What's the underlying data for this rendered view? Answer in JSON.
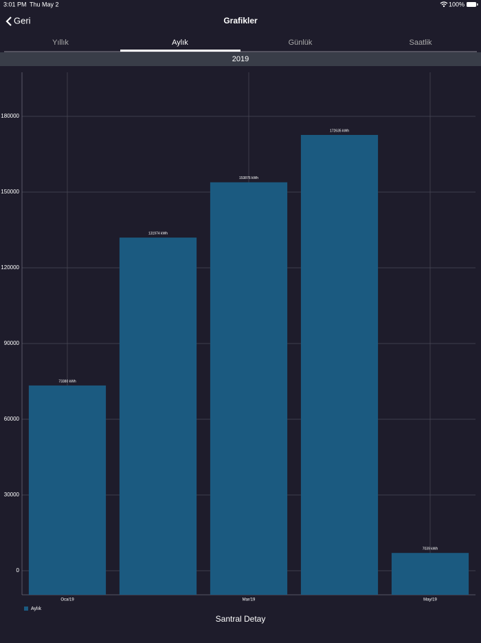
{
  "status_bar": {
    "time": "3:01 PM",
    "date": "Thu May 2",
    "battery": "100%"
  },
  "nav": {
    "back": "Geri",
    "title": "Grafikler"
  },
  "tabs": [
    "Yıllık",
    "Aylık",
    "Günlük",
    "Saatlik"
  ],
  "year": "2019",
  "chart_data": {
    "type": "bar",
    "categories": [
      "Oca/19",
      null,
      "Mar/19",
      null,
      "May/19"
    ],
    "series": [
      {
        "name": "Aylık",
        "color": "#1b5a80",
        "values": [
          73380,
          131974,
          153876,
          172635,
          7039
        ],
        "value_labels": [
          "73380 kWh",
          "131974 kWh",
          "153876 kWh",
          "172635 kWh",
          "7039 kWh"
        ]
      }
    ],
    "ylim": [
      -9545,
      197455
    ],
    "yticks": [
      0,
      30000,
      60000,
      90000,
      120000,
      150000,
      180000
    ],
    "grid": true,
    "legend": "bottom-left"
  },
  "footer": "Santral Detay"
}
